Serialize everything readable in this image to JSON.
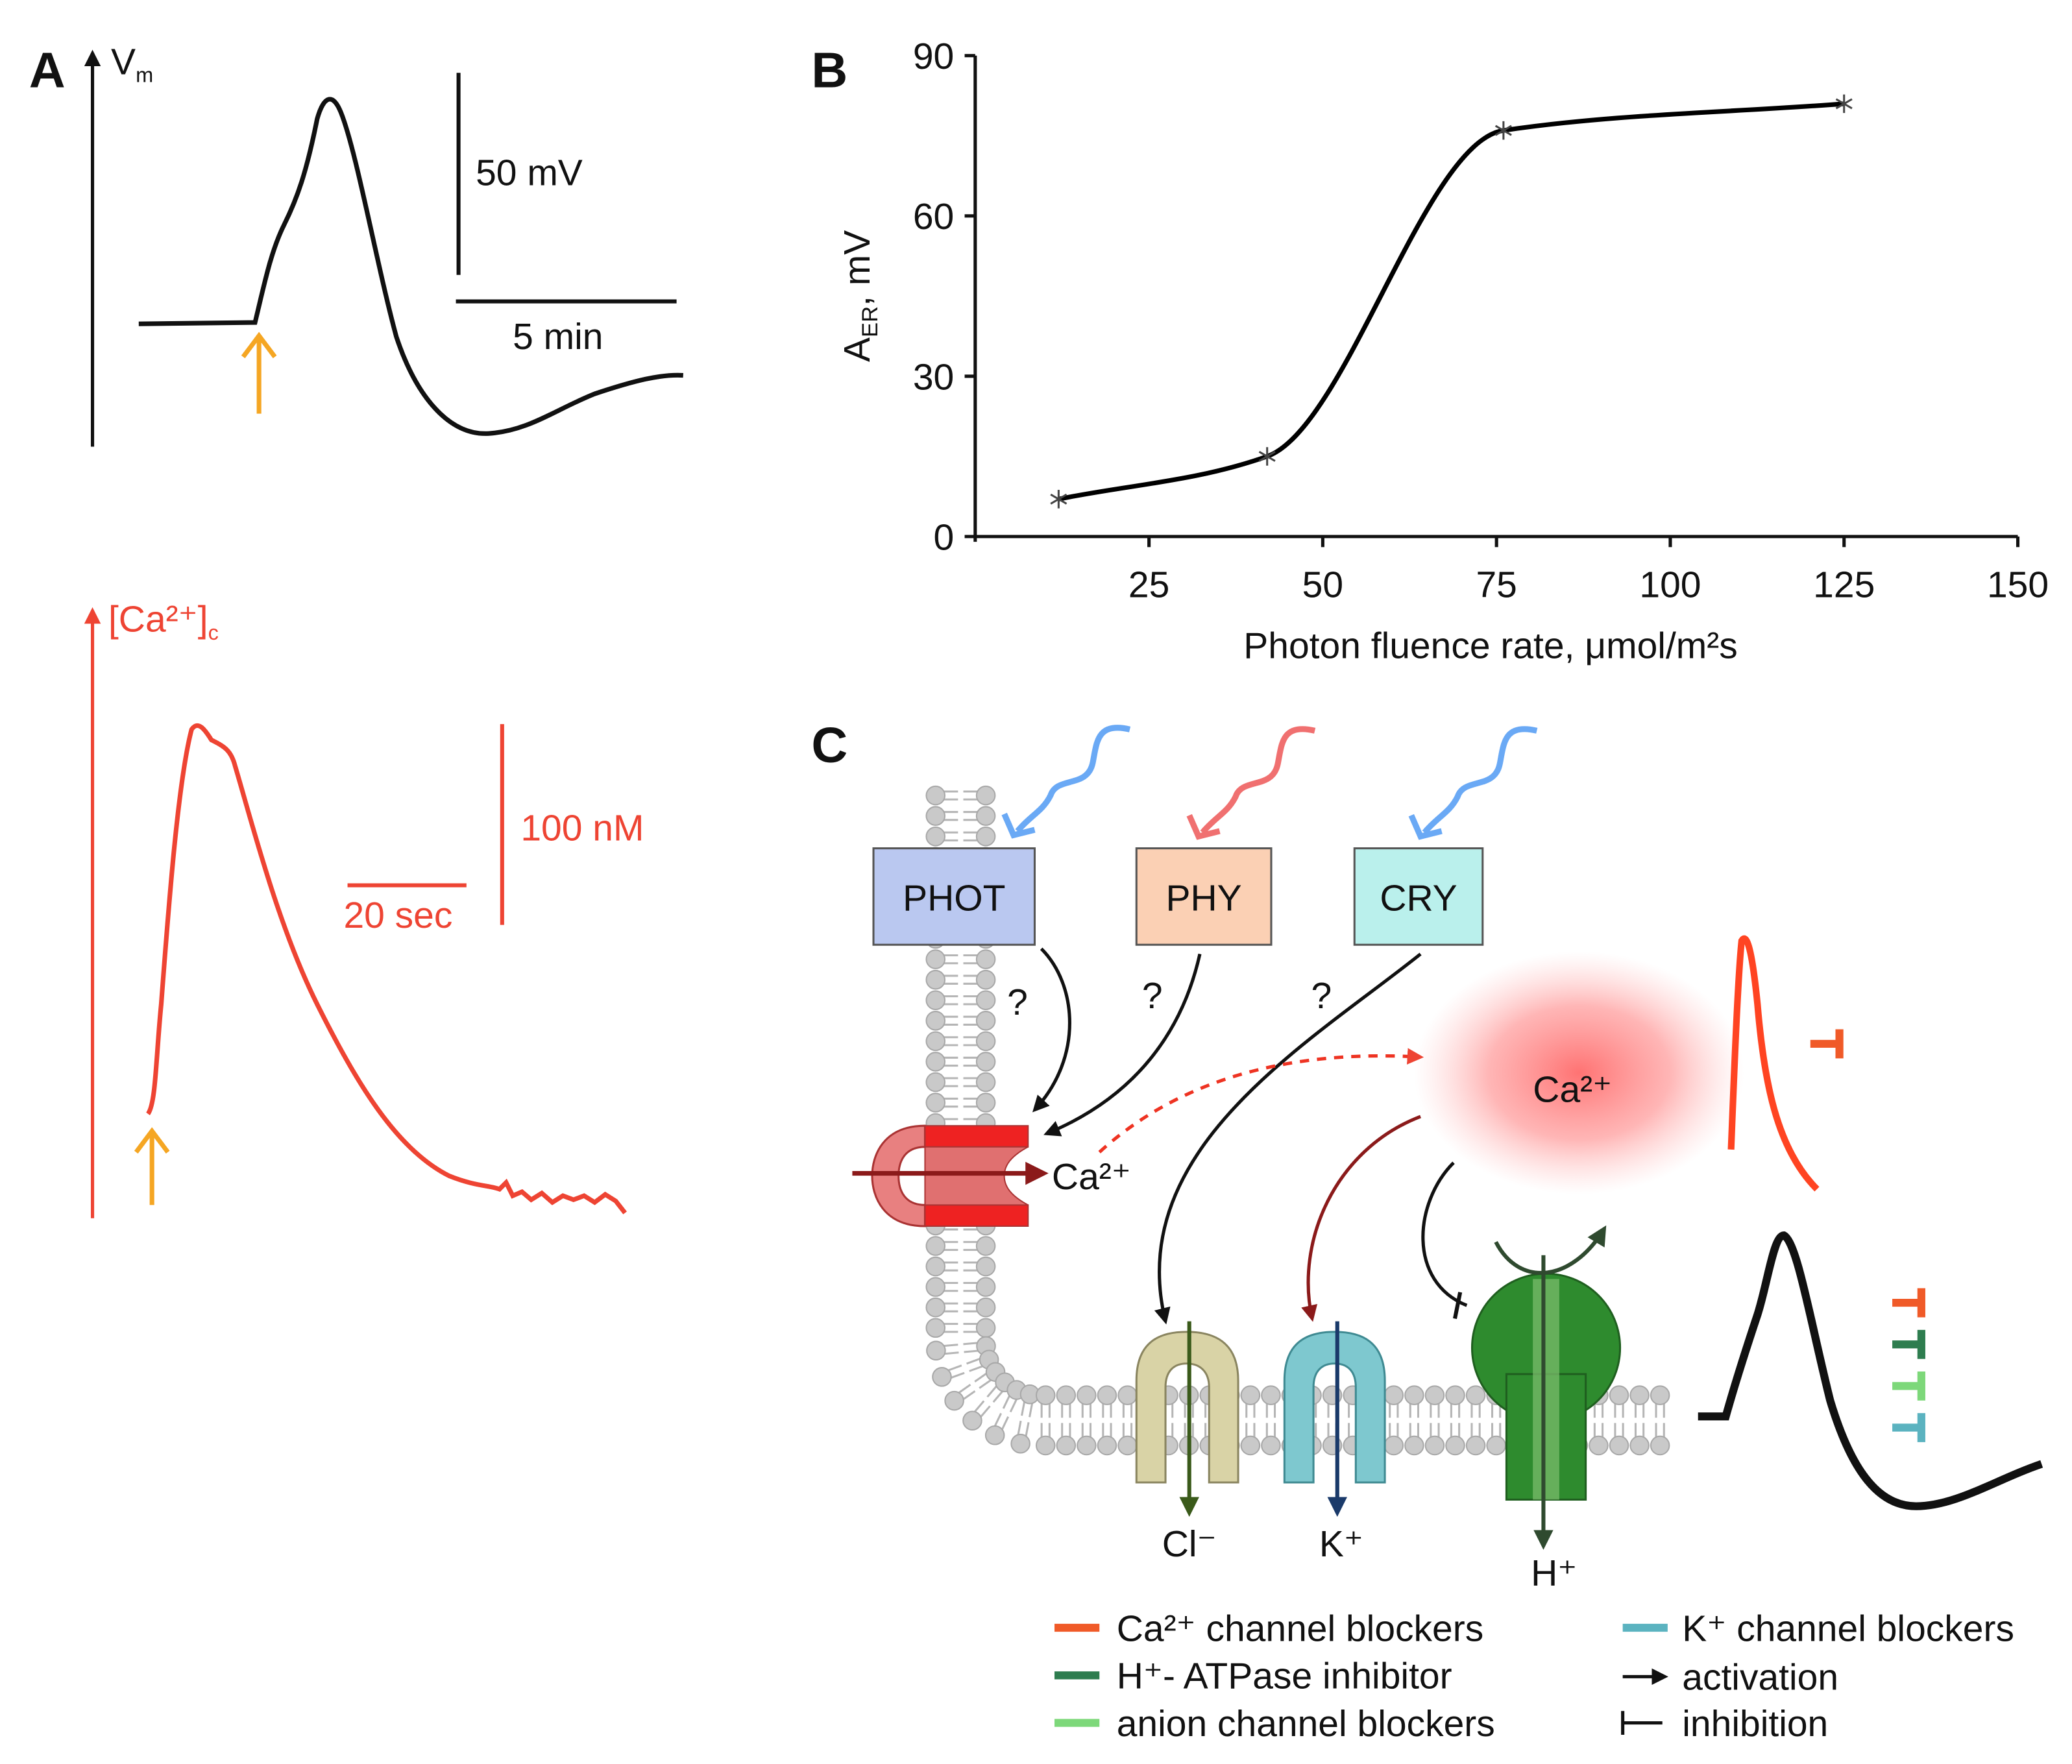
{
  "panel_a": {
    "label": "A",
    "vm_axis": {
      "main": "V",
      "sub": "m"
    },
    "vm_scale_y": "50 mV",
    "vm_scale_x": "5 min",
    "ca_axis": {
      "main": "[Ca²⁺]",
      "sub": "c"
    },
    "ca_scale_y": "100 nM",
    "ca_scale_x": "20 sec"
  },
  "chart_data": {
    "type": "line",
    "panel_label": "B",
    "x": [
      12,
      42,
      76,
      125
    ],
    "values": [
      7,
      15,
      76,
      81
    ],
    "xlim": [
      0,
      150
    ],
    "ylim": [
      0,
      90
    ],
    "xticks": [
      25,
      50,
      75,
      100,
      125,
      150
    ],
    "yticks": [
      0,
      30,
      60,
      90
    ],
    "x_label": "Photon fluence rate, μmol/m²s",
    "y_label": {
      "main": "A",
      "sub": "ER",
      "rest": ", mV"
    },
    "color": "#000000"
  },
  "panel_c": {
    "label": "C",
    "photoreceptors": [
      {
        "name": "PHOT",
        "color": "#bac8f0",
        "light": "#6aa9f5"
      },
      {
        "name": "PHY",
        "color": "#fbd0b4",
        "light": "#f07070"
      },
      {
        "name": "CRY",
        "color": "#baf0ec",
        "light": "#6aa9f5"
      }
    ],
    "questions": [
      "?",
      "?",
      "?"
    ],
    "ca_channel_ion": "Ca²⁺",
    "ca_cloud": "Ca²⁺",
    "anion_ion": "Cl⁻",
    "k_ion": "K⁺",
    "h_ion": "H⁺",
    "legend": [
      {
        "label": "Ca²⁺ channel blockers",
        "color": "#f05a28"
      },
      {
        "label": "H⁺- ATPase inhibitor",
        "color": "#2e7d4f"
      },
      {
        "label": "anion channel blockers",
        "color": "#7dd87a"
      },
      {
        "label": "K⁺ channel blockers",
        "color": "#5bb3c0"
      },
      {
        "label": "activation",
        "symbol": "arrow"
      },
      {
        "label": "inhibition",
        "symbol": "inhibition"
      }
    ]
  }
}
